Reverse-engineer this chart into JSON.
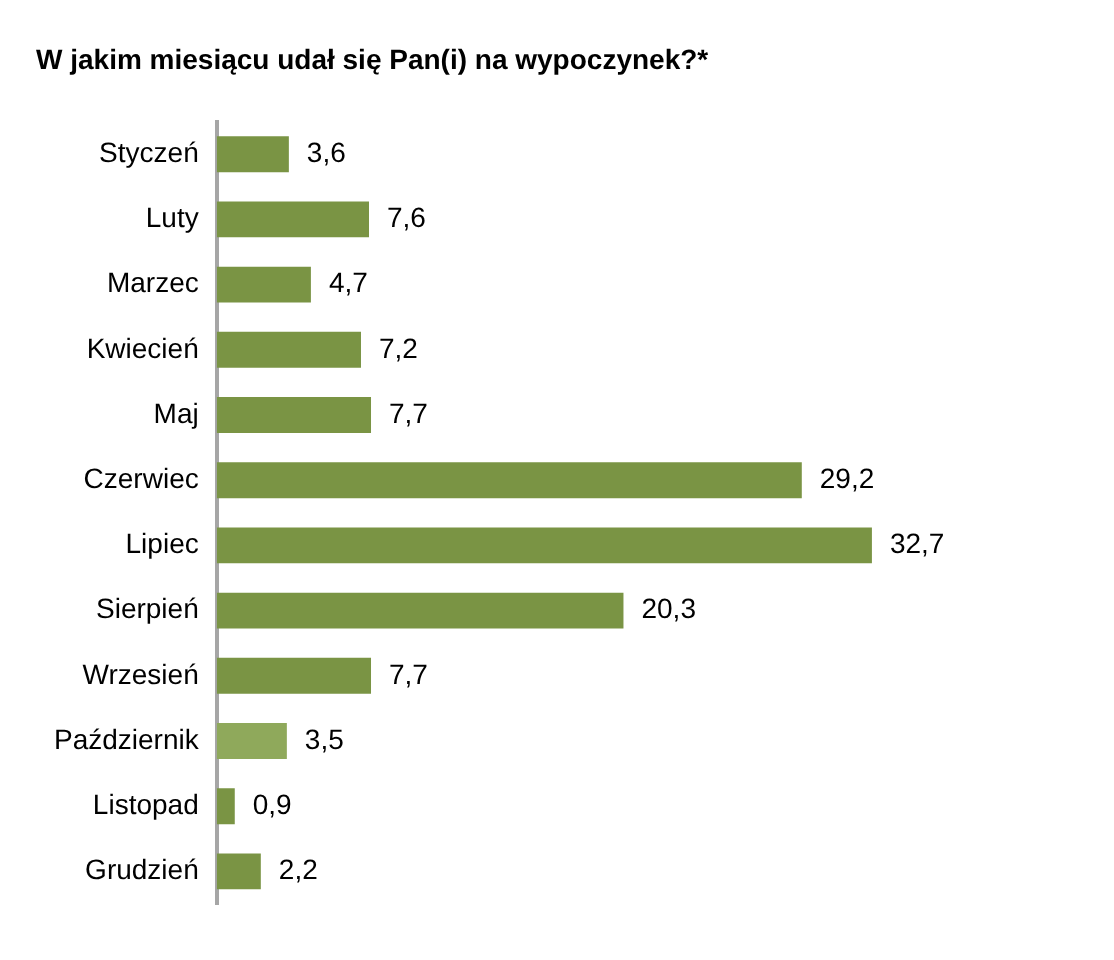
{
  "chart_data": {
    "type": "bar",
    "orientation": "horizontal",
    "title": "W jakim miesiącu udał się Pan(i) na wypoczynek?*",
    "categories": [
      "Styczeń",
      "Luty",
      "Marzec",
      "Kwiecień",
      "Maj",
      "Czerwiec",
      "Lipiec",
      "Sierpień",
      "Wrzesień",
      "Październik",
      "Listopad",
      "Grudzień"
    ],
    "values": [
      3.6,
      7.6,
      4.7,
      7.2,
      7.7,
      29.2,
      32.7,
      20.3,
      7.7,
      3.5,
      0.9,
      2.2
    ],
    "colors": [
      "#7a9444",
      "#7a9444",
      "#7a9444",
      "#7a9444",
      "#7a9444",
      "#7a9444",
      "#7a9444",
      "#7a9444",
      "#7a9444",
      "#8fa95b",
      "#7a9444",
      "#7a9444"
    ],
    "value_labels": [
      "3,6",
      "7,6",
      "4,7",
      "7,2",
      "7,7",
      "29,2",
      "32,7",
      "20,3",
      "7,7",
      "3,5",
      "0,9",
      "2,2"
    ],
    "tick_labels": "y",
    "grid": false,
    "legend": false
  }
}
